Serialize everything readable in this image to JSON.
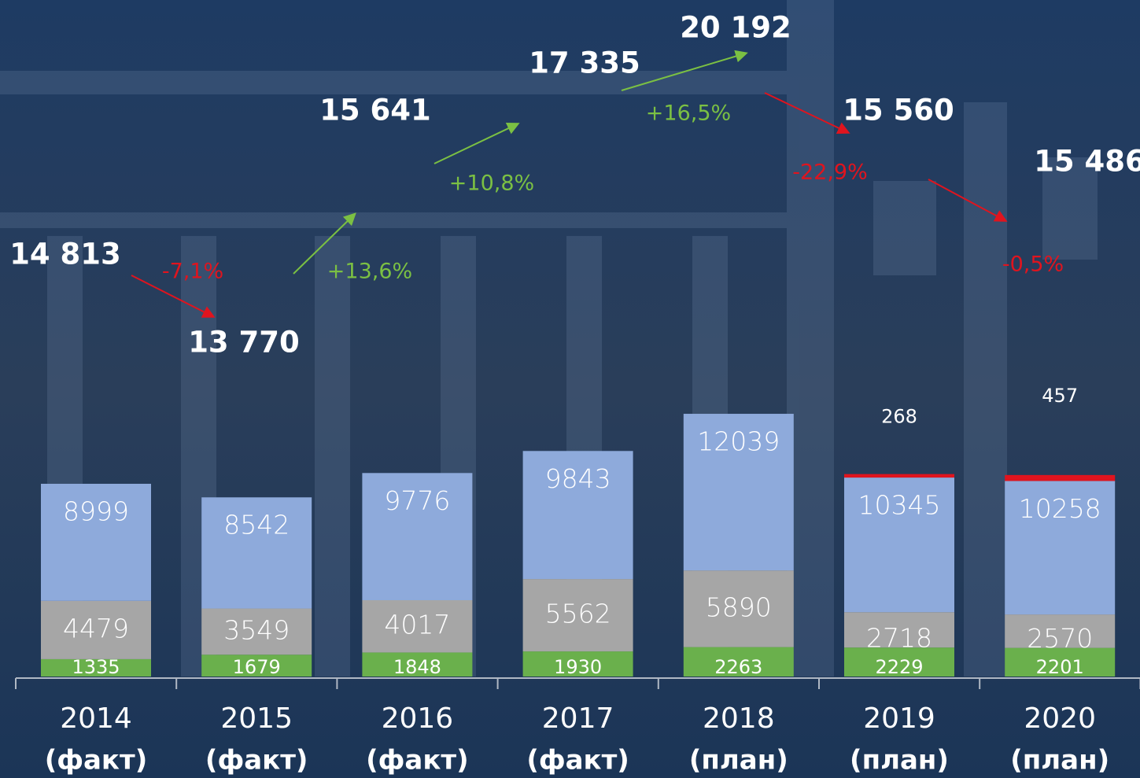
{
  "chart_data": {
    "type": "stacked-bar",
    "categories": [
      "2014",
      "2015",
      "2016",
      "2017",
      "2018",
      "2019",
      "2020"
    ],
    "category_notes": [
      "(факт)",
      "(факт)",
      "(факт)",
      "(факт)",
      "(план)",
      "(план)",
      "(план)"
    ],
    "series": [
      {
        "color": "#6ab04c",
        "values": [
          1335,
          1679,
          1848,
          1930,
          2263,
          2229,
          2201
        ]
      },
      {
        "color": "#a6a6a6",
        "values": [
          4479,
          3549,
          4017,
          5562,
          5890,
          2718,
          2570
        ]
      },
      {
        "color": "#8eaadb",
        "values": [
          8999,
          8542,
          9776,
          9843,
          12039,
          10345,
          10258
        ]
      },
      {
        "color": "#e0141e",
        "values": [
          null,
          null,
          null,
          null,
          null,
          268,
          457
        ]
      }
    ],
    "totals": [
      14813,
      13770,
      15641,
      17335,
      20192,
      15560,
      15486
    ],
    "totals_labels": [
      "14 813",
      "13 770",
      "15 641",
      "17 335",
      "20 192",
      "15 560",
      "15 486"
    ],
    "changes": [
      -7.1,
      13.6,
      10.8,
      16.5,
      -22.9,
      -0.5
    ],
    "changes_labels": [
      "-7,1%",
      "+13,6%",
      "+10,8%",
      "+16,5%",
      "-22,9%",
      "-0,5%"
    ],
    "positive_color": "#7bc043",
    "negative_color": "#e0141e"
  }
}
